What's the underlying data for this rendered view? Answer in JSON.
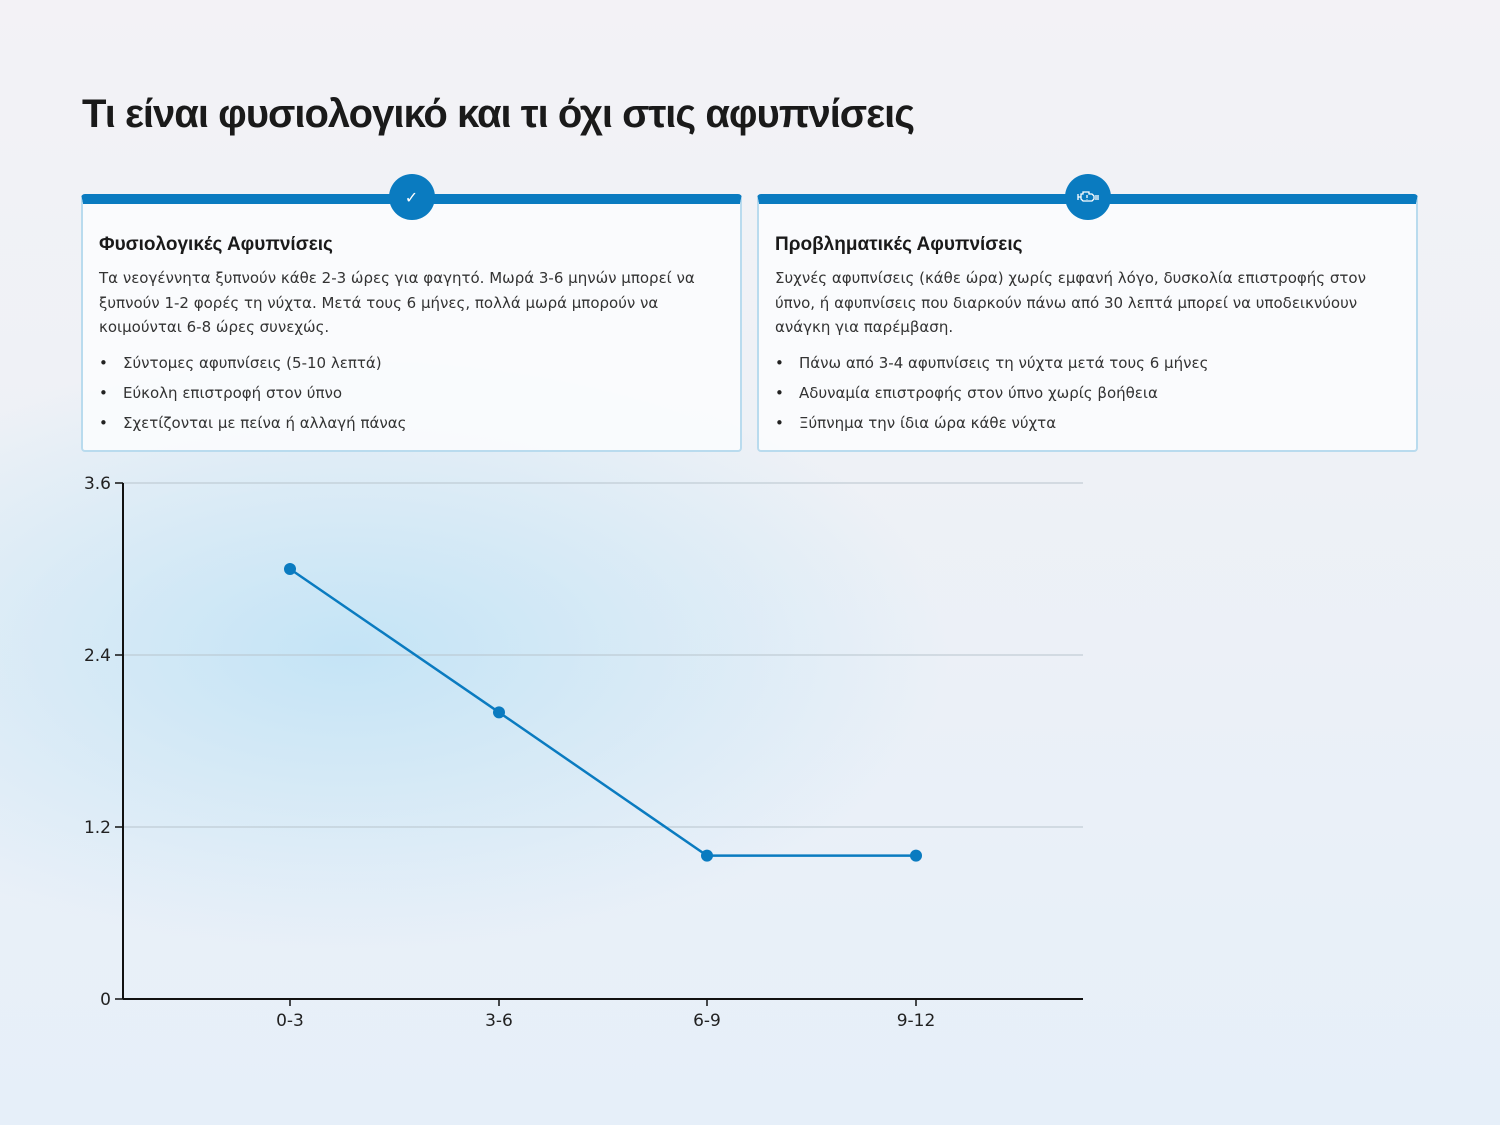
{
  "title": "Τι είναι φυσιολογικό και τι όχι στις αφυπνίσεις",
  "cards": [
    {
      "icon": "check-icon",
      "title": "Φυσιολογικές Αφυπνίσεις",
      "text": "Τα νεογέννητα ξυπνούν κάθε 2-3 ώρες για φαγητό. Μωρά 3-6 μηνών μπορεί να ξυπνούν 1-2 φορές τη νύχτα. Μετά τους 6 μήνες, πολλά μωρά μπορούν να κοιμούνται 6-8 ώρες συνεχώς.",
      "items": [
        "Σύντομες αφυπνίσεις (5-10 λεπτά)",
        "Εύκολη επιστροφή στον ύπνο",
        "Σχετίζονται με πείνα ή αλλαγή πάνας"
      ]
    },
    {
      "icon": "engine-warning-icon",
      "title": "Προβληματικές Αφυπνίσεις",
      "text": "Συχνές αφυπνίσεις (κάθε ώρα) χωρίς εμφανή λόγο, δυσκολία επιστροφής στον ύπνο, ή αφυπνίσεις που διαρκούν πάνω από 30 λεπτά μπορεί να υποδεικνύουν ανάγκη για παρέμβαση.",
      "items": [
        "Πάνω από 3-4 αφυπνίσεις τη νύχτα μετά τους 6 μήνες",
        "Αδυναμία επιστροφής στον ύπνο χωρίς βοήθεια",
        "Ξύπνημα την ίδια ώρα κάθε νύχτα"
      ]
    }
  ],
  "chart_data": {
    "type": "line",
    "categories": [
      "0-3",
      "3-6",
      "6-9",
      "9-12"
    ],
    "values": [
      3,
      2,
      1,
      1
    ],
    "ylim": [
      0,
      3.6
    ],
    "yticks": [
      "0",
      "1.2",
      "2.4",
      "3.6"
    ],
    "grid": true,
    "color": "#0a7bc0"
  }
}
